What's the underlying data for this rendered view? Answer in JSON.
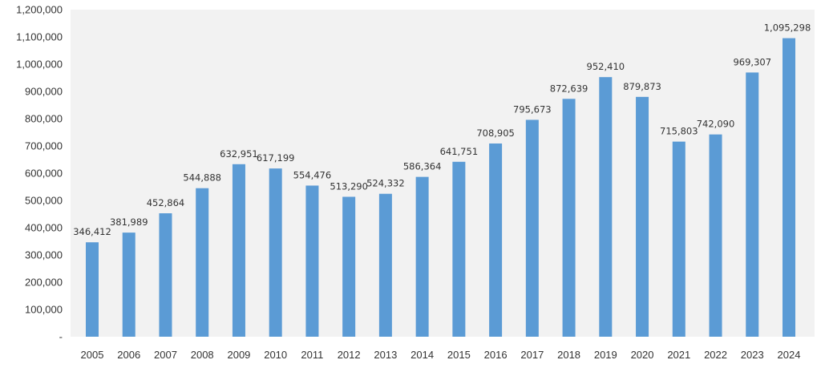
{
  "chart_data": {
    "type": "bar",
    "categories": [
      "2005",
      "2006",
      "2007",
      "2008",
      "2009",
      "2010",
      "2011",
      "2012",
      "2013",
      "2014",
      "2015",
      "2016",
      "2017",
      "2018",
      "2019",
      "2020",
      "2021",
      "2022",
      "2023",
      "2024"
    ],
    "values": [
      346412,
      381989,
      452864,
      544888,
      632951,
      617199,
      554476,
      513290,
      524332,
      586364,
      641751,
      708905,
      795673,
      872639,
      952410,
      879873,
      715803,
      742090,
      969307,
      1095298
    ],
    "value_labels": [
      "346,412",
      "381,989",
      "452,864",
      "544,888",
      "632,951",
      "617,199",
      "554,476",
      "513,290",
      "524,332",
      "586,364",
      "641,751",
      "708,905",
      "795,673",
      "872,639",
      "952,410",
      "879,873",
      "715,803",
      "742,090",
      "969,307",
      "1,095,298"
    ],
    "yticks": [
      0,
      100000,
      200000,
      300000,
      400000,
      500000,
      600000,
      700000,
      800000,
      900000,
      1000000,
      1100000,
      1200000
    ],
    "ytick_labels": [
      "-",
      "100,000",
      "200,000",
      "300,000",
      "400,000",
      "500,000",
      "600,000",
      "700,000",
      "800,000",
      "900,000",
      "1,000,000",
      "1,100,000",
      "1,200,000"
    ],
    "ylim": [
      0,
      1200000
    ],
    "title": "",
    "xlabel": "",
    "ylabel": "",
    "grid": false,
    "legend": "none",
    "colors": {
      "bar": "#5b9bd5",
      "plot_background": "#f2f2f2",
      "text": "#333333"
    }
  }
}
